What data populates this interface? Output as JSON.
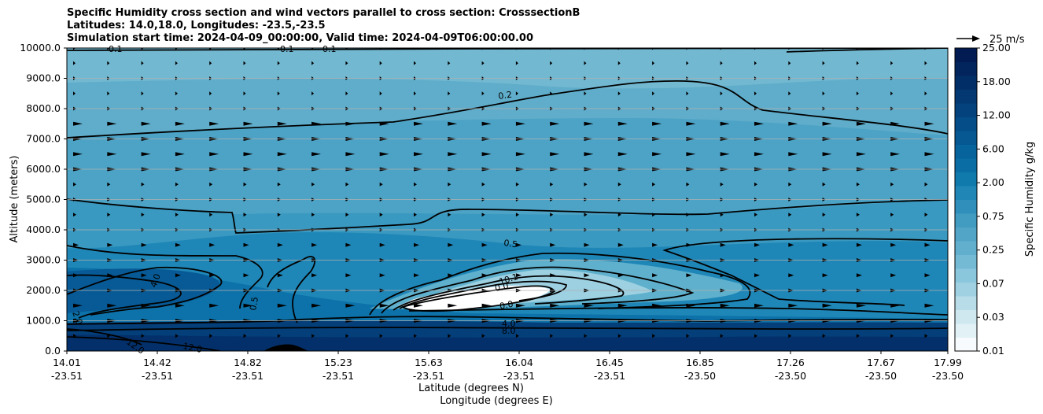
{
  "chart_data": {
    "type": "contour",
    "title_lines": [
      "Specific Humidity cross section and wind vectors parallel to cross section: CrosssectionB",
      "Latitudes: 14.0,18.0, Longitudes: -23.5,-23.5",
      "Simulation start time: 2024-04-09_00:00:00, Valid time: 2024-04-09T06:00:00.00"
    ],
    "ylabel": "Altitude (meters)",
    "xlabel_lines": [
      "Latitude (degrees N)",
      "Longitude (degrees E)"
    ],
    "ylim": [
      0,
      10000
    ],
    "yticks": [
      "0.0",
      "1000.0",
      "2000.0",
      "3000.0",
      "4000.0",
      "5000.0",
      "6000.0",
      "7000.0",
      "8000.0",
      "9000.0",
      "10000.0"
    ],
    "xticks": [
      {
        "lat": "14.01",
        "lon": "-23.51"
      },
      {
        "lat": "14.42",
        "lon": "-23.51"
      },
      {
        "lat": "14.82",
        "lon": "-23.51"
      },
      {
        "lat": "15.23",
        "lon": "-23.51"
      },
      {
        "lat": "15.63",
        "lon": "-23.51"
      },
      {
        "lat": "16.04",
        "lon": "-23.51"
      },
      {
        "lat": "16.45",
        "lon": "-23.51"
      },
      {
        "lat": "16.85",
        "lon": "-23.50"
      },
      {
        "lat": "17.26",
        "lon": "-23.50"
      },
      {
        "lat": "17.67",
        "lon": "-23.50"
      },
      {
        "lat": "17.99",
        "lon": "-23.50"
      }
    ],
    "grid": true,
    "colorbar": {
      "label": "Specific Humidity g/kg",
      "ticks": [
        "25.00",
        "18.00",
        "12.00",
        "6.00",
        "2.00",
        "0.75",
        "0.25",
        "0.07",
        "0.03",
        "0.01"
      ]
    },
    "quiver_key": "25 m/s",
    "contour_labels": [
      "0.1",
      "0.1",
      "0.1",
      "0.2",
      "0.5",
      "0.5",
      "4.0",
      "2.0",
      "12.0",
      "12.0",
      "10.1",
      "0.0",
      "0.0",
      "4.0",
      "8.0"
    ],
    "wind_vector_rows_m": [
      500,
      1000,
      1500,
      2000,
      2500,
      3000,
      3500,
      4000,
      4500,
      5000,
      5500,
      6000,
      6500,
      7000,
      7500,
      8000,
      8500,
      9000,
      9500,
      10000
    ]
  }
}
